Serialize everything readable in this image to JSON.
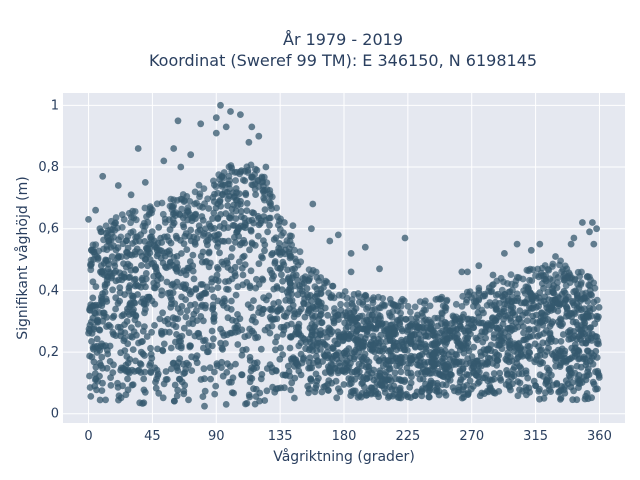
{
  "chart_data": {
    "type": "scatter",
    "title_line1": "År 1979 - 2019",
    "title_line2": "Koordinat (Sweref 99 TM): E 346150, N 6198145",
    "xlabel": "Vågriktning (grader)",
    "ylabel": "Signifikant våghöjd (m)",
    "xlim": [
      -18,
      378
    ],
    "ylim": [
      -0.03,
      1.04
    ],
    "x_ticks": [
      0,
      45,
      90,
      135,
      180,
      225,
      270,
      315,
      360
    ],
    "x_tick_labels": [
      "0",
      "45",
      "90",
      "135",
      "180",
      "225",
      "270",
      "315",
      "360"
    ],
    "y_ticks": [
      0,
      0.2,
      0.4,
      0.6,
      0.8,
      1
    ],
    "y_tick_labels": [
      "0",
      "0,2",
      "0,4",
      "0,6",
      "0,8",
      "1"
    ],
    "grid": true,
    "marker_color": "#34586e",
    "plot_bg": "#e5e8f0",
    "envelope": {
      "x": [
        0,
        10,
        20,
        30,
        45,
        60,
        75,
        90,
        105,
        115,
        125,
        135,
        150,
        165,
        180,
        200,
        225,
        250,
        270,
        290,
        315,
        330,
        345,
        360
      ],
      "dense_upper": [
        0.45,
        0.52,
        0.56,
        0.58,
        0.6,
        0.62,
        0.66,
        0.7,
        0.74,
        0.74,
        0.68,
        0.56,
        0.44,
        0.36,
        0.32,
        0.3,
        0.29,
        0.3,
        0.32,
        0.36,
        0.4,
        0.42,
        0.4,
        0.36
      ],
      "dense_lower": [
        0.04,
        0.04,
        0.04,
        0.03,
        0.03,
        0.03,
        0.02,
        0.02,
        0.02,
        0.02,
        0.03,
        0.04,
        0.05,
        0.05,
        0.05,
        0.05,
        0.05,
        0.05,
        0.05,
        0.05,
        0.04,
        0.04,
        0.04,
        0.05
      ]
    },
    "outliers": [
      {
        "x": 93,
        "y": 1.0
      },
      {
        "x": 100,
        "y": 0.98
      },
      {
        "x": 107,
        "y": 0.97
      },
      {
        "x": 90,
        "y": 0.96
      },
      {
        "x": 97,
        "y": 0.93
      },
      {
        "x": 115,
        "y": 0.93
      },
      {
        "x": 90,
        "y": 0.91
      },
      {
        "x": 120,
        "y": 0.9
      },
      {
        "x": 113,
        "y": 0.88
      },
      {
        "x": 63,
        "y": 0.95
      },
      {
        "x": 79,
        "y": 0.94
      },
      {
        "x": 35,
        "y": 0.86
      },
      {
        "x": 53,
        "y": 0.82
      },
      {
        "x": 60,
        "y": 0.86
      },
      {
        "x": 72,
        "y": 0.84
      },
      {
        "x": 10,
        "y": 0.77
      },
      {
        "x": 21,
        "y": 0.74
      },
      {
        "x": 30,
        "y": 0.71
      },
      {
        "x": 40,
        "y": 0.75
      },
      {
        "x": 65,
        "y": 0.8
      },
      {
        "x": 125,
        "y": 0.8
      },
      {
        "x": 138,
        "y": 0.62
      },
      {
        "x": 144,
        "y": 0.61
      },
      {
        "x": 157,
        "y": 0.6
      },
      {
        "x": 158,
        "y": 0.68
      },
      {
        "x": 170,
        "y": 0.56
      },
      {
        "x": 176,
        "y": 0.58
      },
      {
        "x": 185,
        "y": 0.52
      },
      {
        "x": 195,
        "y": 0.54
      },
      {
        "x": 223,
        "y": 0.57
      },
      {
        "x": 205,
        "y": 0.47
      },
      {
        "x": 185,
        "y": 0.46
      },
      {
        "x": 263,
        "y": 0.46
      },
      {
        "x": 267,
        "y": 0.46
      },
      {
        "x": 275,
        "y": 0.48
      },
      {
        "x": 285,
        "y": 0.45
      },
      {
        "x": 293,
        "y": 0.52
      },
      {
        "x": 302,
        "y": 0.55
      },
      {
        "x": 312,
        "y": 0.53
      },
      {
        "x": 318,
        "y": 0.55
      },
      {
        "x": 329,
        "y": 0.51
      },
      {
        "x": 340,
        "y": 0.55
      },
      {
        "x": 342,
        "y": 0.57
      },
      {
        "x": 348,
        "y": 0.62
      },
      {
        "x": 353,
        "y": 0.59
      },
      {
        "x": 355,
        "y": 0.62
      },
      {
        "x": 358,
        "y": 0.6
      },
      {
        "x": 356,
        "y": 0.55
      },
      {
        "x": 0,
        "y": 0.63
      },
      {
        "x": 2,
        "y": 0.53
      },
      {
        "x": 5,
        "y": 0.66
      },
      {
        "x": 8,
        "y": 0.6
      }
    ]
  }
}
